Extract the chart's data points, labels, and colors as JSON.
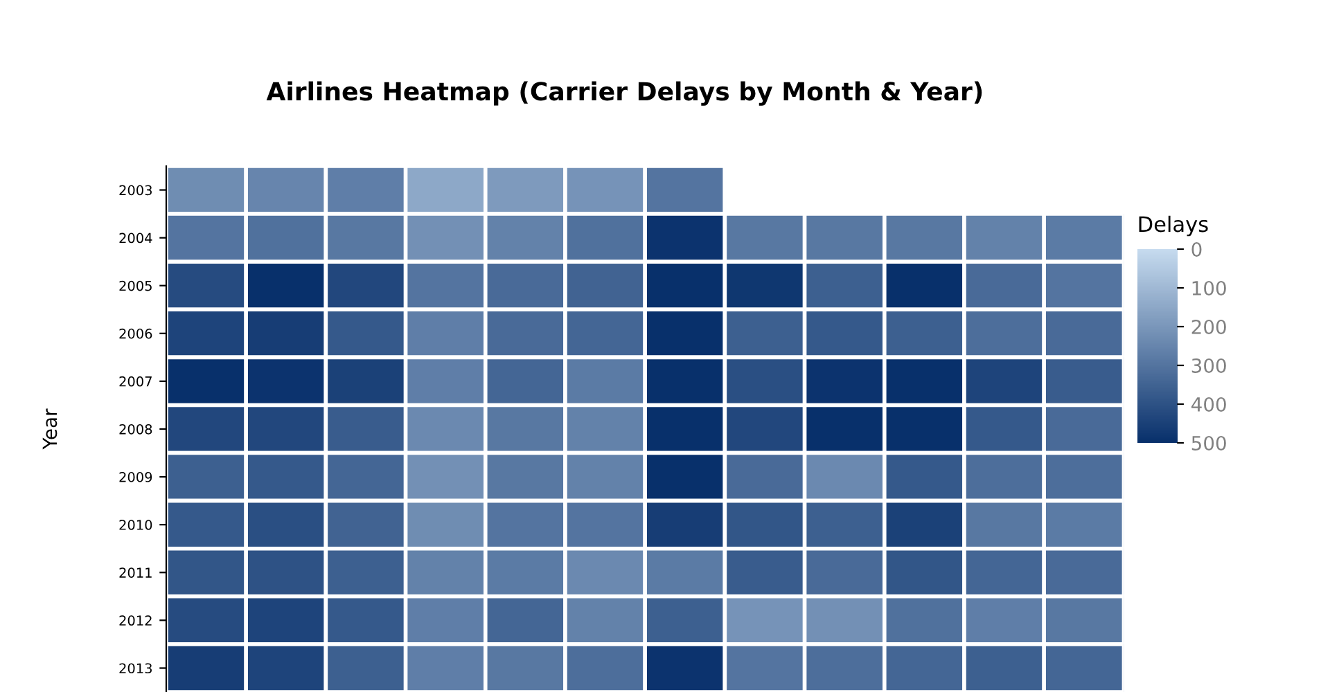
{
  "chart_data": {
    "type": "heatmap",
    "title": "Airlines Heatmap (Carrier Delays by Month & Year)",
    "ylabel": "Year",
    "clabel": "Delays",
    "categories": [
      null,
      null,
      null,
      null,
      null,
      null,
      null,
      null,
      null,
      null,
      null,
      null
    ],
    "y_categories": [
      "2003",
      "2004",
      "2005",
      "2006",
      "2007",
      "2008",
      "2009",
      "2010",
      "2011",
      "2012",
      "2013"
    ],
    "cells": [
      [
        230,
        250,
        270,
        150,
        190,
        210,
        300,
        null,
        null,
        null,
        null,
        null
      ],
      [
        300,
        310,
        290,
        220,
        260,
        310,
        490,
        290,
        290,
        290,
        260,
        280
      ],
      [
        420,
        500,
        430,
        300,
        330,
        350,
        500,
        480,
        360,
        500,
        330,
        300
      ],
      [
        440,
        460,
        380,
        270,
        330,
        340,
        500,
        360,
        380,
        360,
        320,
        330
      ],
      [
        500,
        490,
        450,
        270,
        340,
        280,
        500,
        410,
        490,
        500,
        440,
        370
      ],
      [
        430,
        430,
        370,
        240,
        290,
        260,
        500,
        430,
        500,
        500,
        380,
        330
      ],
      [
        360,
        380,
        340,
        220,
        290,
        260,
        500,
        330,
        240,
        380,
        320,
        320
      ],
      [
        380,
        410,
        350,
        230,
        300,
        300,
        460,
        390,
        360,
        450,
        290,
        280
      ],
      [
        390,
        400,
        360,
        260,
        280,
        240,
        280,
        370,
        330,
        390,
        340,
        330
      ],
      [
        420,
        440,
        380,
        270,
        340,
        260,
        360,
        210,
        220,
        310,
        270,
        290
      ],
      [
        460,
        440,
        360,
        270,
        290,
        320,
        490,
        300,
        320,
        340,
        360,
        340
      ]
    ],
    "clim": [
      0,
      500
    ],
    "cticks": [
      0,
      100,
      200,
      300,
      400,
      500
    ],
    "colors": [
      "#c6dbef",
      "#08306b"
    ]
  }
}
